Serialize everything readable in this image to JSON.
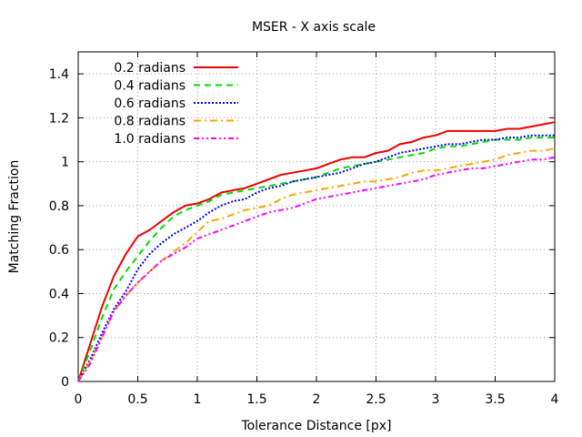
{
  "chart_data": {
    "type": "line",
    "title": "MSER - X axis scale",
    "xlabel": "Tolerance Distance [px]",
    "ylabel": "Matching Fraction",
    "xlim": [
      0,
      4
    ],
    "ylim": [
      0,
      1.5
    ],
    "grid": true,
    "legend_position": "top-left",
    "x_ticks": [
      0,
      0.5,
      1,
      1.5,
      2,
      2.5,
      3,
      3.5,
      4
    ],
    "x_tick_labels": [
      "0",
      "0.5",
      "1",
      "1.5",
      "2",
      "2.5",
      "3",
      "3.5",
      "4"
    ],
    "y_ticks": [
      0,
      0.2,
      0.4,
      0.6,
      0.8,
      1,
      1.2,
      1.4
    ],
    "y_tick_labels": [
      "0",
      "0.2",
      "0.4",
      "0.6",
      "0.8",
      "1",
      "1.2",
      "1.4"
    ],
    "x": [
      0,
      0.1,
      0.2,
      0.3,
      0.4,
      0.5,
      0.6,
      0.7,
      0.8,
      0.9,
      1.0,
      1.1,
      1.2,
      1.3,
      1.4,
      1.5,
      1.6,
      1.7,
      1.8,
      1.9,
      2.0,
      2.1,
      2.2,
      2.3,
      2.4,
      2.5,
      2.6,
      2.7,
      2.8,
      2.9,
      3.0,
      3.1,
      3.2,
      3.3,
      3.4,
      3.5,
      3.6,
      3.7,
      3.8,
      3.9,
      4.0
    ],
    "series": [
      {
        "name": "0.2 radians",
        "color": "#ee0000",
        "dash": "solid",
        "values": [
          0,
          0.17,
          0.34,
          0.48,
          0.58,
          0.66,
          0.69,
          0.73,
          0.77,
          0.8,
          0.81,
          0.83,
          0.86,
          0.87,
          0.88,
          0.9,
          0.92,
          0.94,
          0.95,
          0.96,
          0.97,
          0.99,
          1.01,
          1.02,
          1.02,
          1.04,
          1.05,
          1.08,
          1.09,
          1.11,
          1.12,
          1.14,
          1.14,
          1.14,
          1.14,
          1.14,
          1.15,
          1.15,
          1.16,
          1.17,
          1.18
        ]
      },
      {
        "name": "0.4 radians",
        "color": "#00dd00",
        "dash": "dashed",
        "values": [
          0,
          0.14,
          0.29,
          0.42,
          0.5,
          0.57,
          0.64,
          0.7,
          0.75,
          0.78,
          0.8,
          0.82,
          0.85,
          0.86,
          0.87,
          0.88,
          0.89,
          0.9,
          0.91,
          0.92,
          0.93,
          0.95,
          0.97,
          0.98,
          0.99,
          1.0,
          1.01,
          1.02,
          1.03,
          1.04,
          1.06,
          1.07,
          1.07,
          1.08,
          1.09,
          1.1,
          1.1,
          1.1,
          1.11,
          1.11,
          1.11
        ]
      },
      {
        "name": "0.6 radians",
        "color": "#0000ee",
        "dash": "dotted",
        "values": [
          0,
          0.1,
          0.22,
          0.33,
          0.41,
          0.51,
          0.58,
          0.63,
          0.67,
          0.7,
          0.73,
          0.77,
          0.8,
          0.82,
          0.83,
          0.86,
          0.88,
          0.89,
          0.91,
          0.92,
          0.93,
          0.94,
          0.95,
          0.97,
          0.99,
          1.0,
          1.02,
          1.04,
          1.05,
          1.06,
          1.07,
          1.08,
          1.08,
          1.09,
          1.1,
          1.1,
          1.11,
          1.11,
          1.12,
          1.12,
          1.12
        ]
      },
      {
        "name": "0.8 radians",
        "color": "#ffa500",
        "dash": "dashdot",
        "values": [
          0,
          0.09,
          0.2,
          0.32,
          0.39,
          0.45,
          0.5,
          0.55,
          0.59,
          0.63,
          0.68,
          0.73,
          0.74,
          0.76,
          0.78,
          0.79,
          0.8,
          0.83,
          0.85,
          0.86,
          0.87,
          0.88,
          0.89,
          0.9,
          0.91,
          0.91,
          0.92,
          0.93,
          0.95,
          0.96,
          0.96,
          0.97,
          0.98,
          0.99,
          1.0,
          1.01,
          1.03,
          1.04,
          1.05,
          1.05,
          1.06
        ]
      },
      {
        "name": "1.0 radians",
        "color": "#ff00ff",
        "dash": "dashdotdot",
        "values": [
          0,
          0.08,
          0.2,
          0.32,
          0.39,
          0.45,
          0.5,
          0.55,
          0.58,
          0.61,
          0.65,
          0.67,
          0.69,
          0.71,
          0.73,
          0.75,
          0.77,
          0.78,
          0.79,
          0.81,
          0.83,
          0.84,
          0.85,
          0.86,
          0.87,
          0.88,
          0.89,
          0.9,
          0.91,
          0.92,
          0.94,
          0.95,
          0.96,
          0.97,
          0.97,
          0.98,
          0.99,
          1.0,
          1.01,
          1.01,
          1.02
        ]
      }
    ]
  }
}
